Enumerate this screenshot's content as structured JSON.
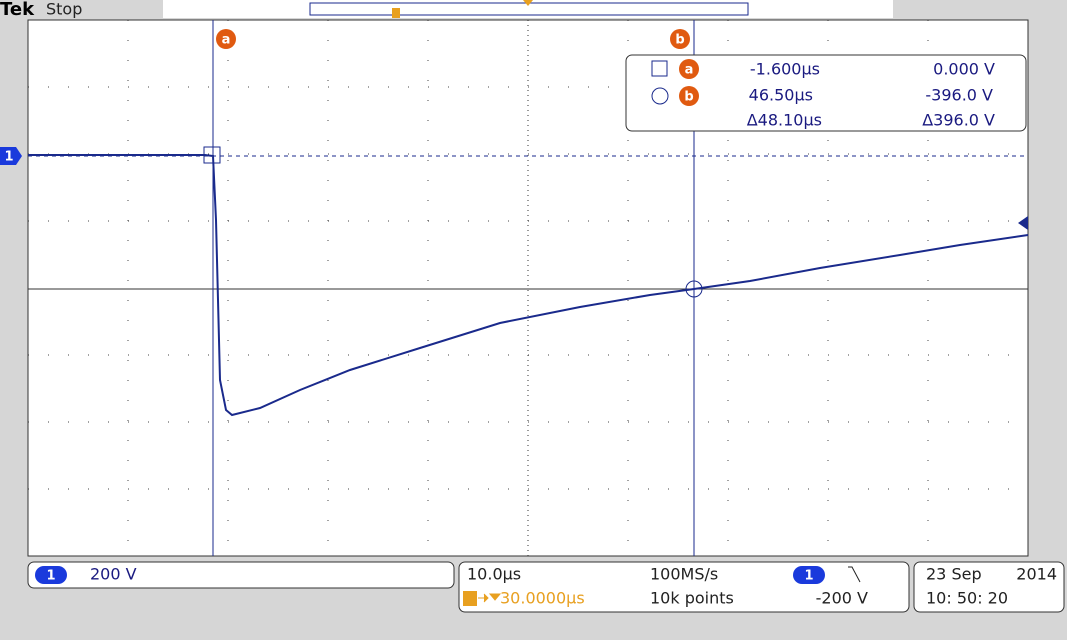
{
  "header": {
    "brand": "Tek",
    "status": "Stop"
  },
  "cursors": {
    "a": "a",
    "b": "b"
  },
  "readout": {
    "rows": [
      {
        "marker": "a",
        "time": "-1.600µs",
        "value": "0.000 V"
      },
      {
        "marker": "b",
        "time": "46.50µs",
        "value": "-396.0 V"
      },
      {
        "time": "Δ48.10µs",
        "value": "Δ396.0 V"
      }
    ]
  },
  "ground_marker": "1",
  "footer": {
    "channel": {
      "number": "1",
      "scale": "200 V"
    },
    "timebase": {
      "scale": "10.0µs",
      "position": "30.0000µs",
      "sample_rate": "100MS/s",
      "record_length": "10k points"
    },
    "trigger": {
      "source": "1",
      "level": "-200 V"
    },
    "date": {
      "day": "23 Sep",
      "year": "2014",
      "time": "10: 50: 20"
    }
  }
}
